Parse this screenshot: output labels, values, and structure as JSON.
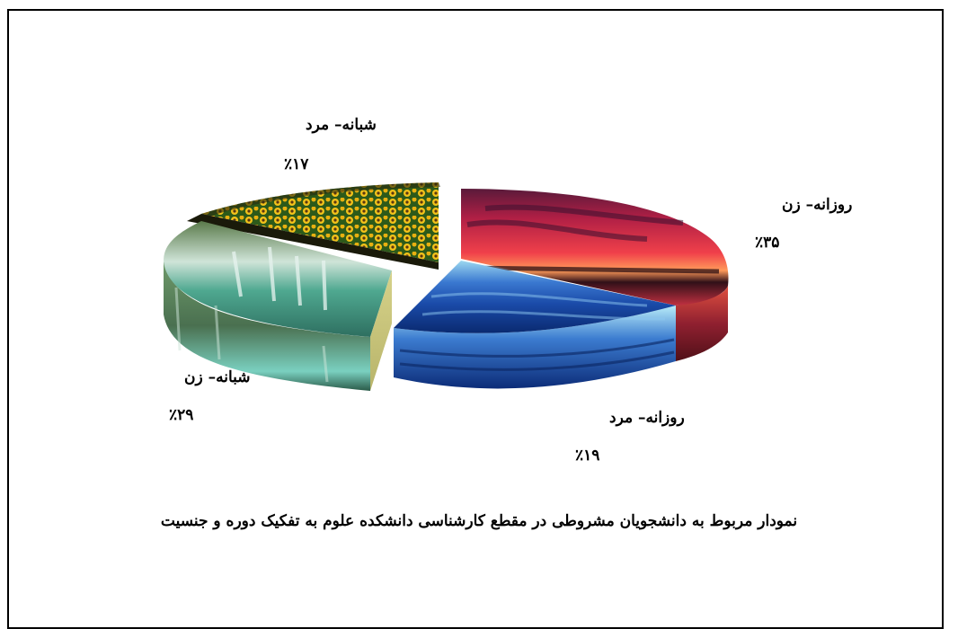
{
  "chart_data": {
    "type": "pie",
    "title": "",
    "caption": "نمودار مربوط به دانشجویان مشروطی در مقطع کارشناسی دانشکده علوم به تفکیک دوره و جنسیت",
    "slices": [
      {
        "label": "روزانه– زن",
        "value": 35,
        "value_label": "٪۳۵",
        "color": "#d4304a"
      },
      {
        "label": "روزانه– مرد",
        "value": 19,
        "value_label": "٪۱۹",
        "color": "#1f4fa8"
      },
      {
        "label": "شبانه– زن",
        "value": 29,
        "value_label": "٪۲۹",
        "color": "#3f8a6a"
      },
      {
        "label": "شبانه– مرد",
        "value": 17,
        "value_label": "٪۱۷",
        "color": "#e6b81a"
      }
    ]
  }
}
